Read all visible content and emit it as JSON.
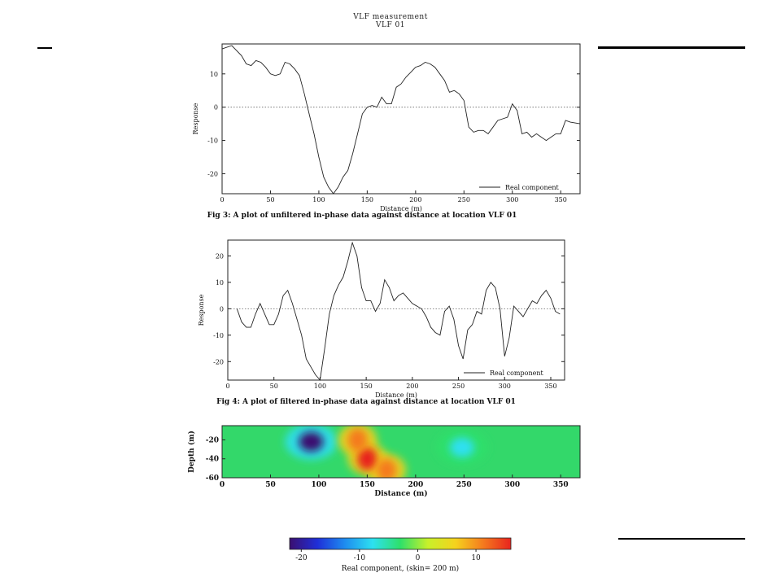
{
  "page": {
    "title": "VLF measurement",
    "subtitle": "VLF 01"
  },
  "chart_data": [
    {
      "type": "line",
      "title": "",
      "xlabel": "Distance (m)",
      "ylabel": "Response",
      "xlim": [
        0,
        370
      ],
      "ylim": [
        -26,
        19
      ],
      "xticks": [
        0,
        50,
        100,
        150,
        200,
        250,
        300,
        350
      ],
      "yticks": [
        -20,
        -10,
        0,
        10
      ],
      "caption": "Fig 3: A plot of unfiltered in-phase data against distance at location VLF 01",
      "legend": "top-right",
      "series": [
        {
          "name": "Real component",
          "color": "#222222",
          "x": [
            0,
            10,
            20,
            25,
            30,
            35,
            40,
            45,
            50,
            55,
            60,
            65,
            70,
            75,
            80,
            85,
            90,
            95,
            100,
            105,
            110,
            115,
            120,
            125,
            130,
            135,
            140,
            145,
            150,
            155,
            160,
            165,
            170,
            175,
            180,
            185,
            190,
            195,
            200,
            205,
            210,
            215,
            220,
            225,
            230,
            235,
            240,
            245,
            250,
            255,
            260,
            265,
            270,
            275,
            280,
            285,
            290,
            295,
            300,
            305,
            310,
            315,
            320,
            325,
            330,
            335,
            340,
            345,
            350,
            355,
            360,
            370
          ],
          "y": [
            17.5,
            18.5,
            15.5,
            13,
            12.5,
            14,
            13.5,
            12,
            10,
            9.5,
            10,
            13.5,
            13,
            11.5,
            9.5,
            4,
            -2,
            -8,
            -15,
            -21,
            -24,
            -26,
            -24,
            -21,
            -19,
            -14,
            -8,
            -2,
            0,
            0.5,
            0,
            3,
            1,
            1,
            6,
            7,
            9,
            10.5,
            12,
            12.5,
            13.5,
            13,
            12,
            10,
            8,
            4.5,
            5,
            4,
            2,
            -6,
            -7.5,
            -7,
            -7,
            -8,
            -6,
            -4,
            -3.5,
            -3,
            1,
            -1,
            -8,
            -7.5,
            -9,
            -8,
            -9,
            -10,
            -9,
            -8,
            -8,
            -4,
            -4.5,
            -5
          ]
        }
      ]
    },
    {
      "type": "line",
      "title": "",
      "xlabel": "Distance (m)",
      "ylabel": "Response",
      "xlim": [
        0,
        365
      ],
      "ylim": [
        -27,
        26
      ],
      "xticks": [
        0,
        50,
        100,
        150,
        200,
        250,
        300,
        350
      ],
      "yticks": [
        -20,
        -10,
        0,
        10,
        20
      ],
      "caption": "Fig 4: A plot of filtered in-phase data against distance at location VLF 01",
      "legend": "bottom-right",
      "series": [
        {
          "name": "Real component",
          "color": "#222222",
          "x": [
            10,
            15,
            20,
            25,
            30,
            35,
            40,
            45,
            50,
            55,
            60,
            65,
            70,
            75,
            80,
            85,
            90,
            95,
            100,
            105,
            110,
            115,
            120,
            125,
            130,
            135,
            140,
            145,
            150,
            155,
            160,
            165,
            170,
            175,
            180,
            185,
            190,
            195,
            200,
            205,
            210,
            215,
            220,
            225,
            230,
            235,
            240,
            245,
            250,
            255,
            260,
            265,
            270,
            275,
            280,
            285,
            290,
            295,
            300,
            305,
            310,
            315,
            320,
            325,
            330,
            335,
            340,
            345,
            350,
            355,
            360
          ],
          "y": [
            0,
            -5,
            -7,
            -7,
            -2,
            2,
            -2,
            -6,
            -6,
            -2,
            5,
            7,
            2,
            -4,
            -10,
            -19,
            -22,
            -25,
            -27,
            -15,
            -2,
            5,
            9,
            12,
            18,
            25,
            20,
            8,
            3,
            3,
            -1,
            2,
            11,
            8,
            3,
            5,
            6,
            4,
            2,
            1,
            0,
            -3,
            -7,
            -9,
            -10,
            -1,
            1,
            -4,
            -14,
            -19,
            -8,
            -6,
            -1,
            -2,
            7,
            10,
            8,
            0,
            -18,
            -11,
            1,
            -1,
            -3,
            0,
            3,
            2,
            5,
            7,
            4,
            -1,
            -2
          ]
        }
      ]
    },
    {
      "type": "heatmap",
      "title": "",
      "xlabel": "Distance (m)",
      "ylabel": "Depth (m)",
      "xlim": [
        0,
        370
      ],
      "ylim": [
        -60,
        -5
      ],
      "xticks": [
        0,
        50,
        100,
        150,
        200,
        250,
        300,
        350
      ],
      "yticks": [
        -20,
        -40,
        -60
      ],
      "colorbar": {
        "label": "Real component,  (skin=  200 m)",
        "range": [
          -22,
          16
        ],
        "ticks": [
          -20,
          -10,
          0,
          10
        ],
        "colors": [
          "#3b0f70",
          "#1f2fd8",
          "#1e8cf0",
          "#2de0f0",
          "#2ee06a",
          "#c8f02a",
          "#f5d21e",
          "#f57a1e",
          "#e8241e"
        ]
      },
      "features": [
        {
          "kind": "low",
          "x": 92,
          "depth": -22,
          "value": -20
        },
        {
          "kind": "low",
          "x": 248,
          "depth": -28,
          "value": -10
        },
        {
          "kind": "high",
          "x": 150,
          "depth": -40,
          "value": 14
        },
        {
          "kind": "high",
          "x": 170,
          "depth": -52,
          "value": 12
        },
        {
          "kind": "high",
          "x": 140,
          "depth": -20,
          "value": 10
        }
      ]
    }
  ]
}
